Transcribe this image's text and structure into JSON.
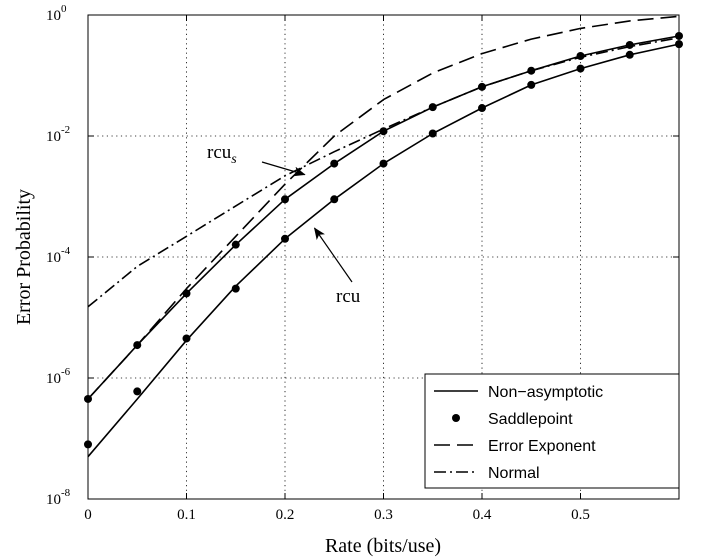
{
  "chart_data": {
    "type": "line",
    "xlabel": "Rate (bits/use)",
    "ylabel": "Error Probability",
    "xlim": [
      0,
      0.6
    ],
    "ylim_log10": [
      -8,
      0
    ],
    "y_scale": "log",
    "grid": true,
    "legend_placement": "bottom-right",
    "x_ticks": [
      0,
      0.1,
      0.2,
      0.3,
      0.4,
      0.5
    ],
    "x_tick_labels": [
      "0",
      "0.1",
      "0.2",
      "0.3",
      "0.4",
      "0.5"
    ],
    "y_ticks": [
      1e-08,
      1e-06,
      0.0001,
      0.01,
      1
    ],
    "y_tick_labels": [
      {
        "base": "10",
        "exp": "-8"
      },
      {
        "base": "10",
        "exp": "-6"
      },
      {
        "base": "10",
        "exp": "-4"
      },
      {
        "base": "10",
        "exp": "-2"
      },
      {
        "base": "10",
        "exp": "0"
      }
    ],
    "series": [
      {
        "name": "Non−asymptotic",
        "style": "solid",
        "curve": "rcu_s",
        "x": [
          0,
          0.05,
          0.1,
          0.15,
          0.2,
          0.25,
          0.3,
          0.35,
          0.4,
          0.45,
          0.5,
          0.55,
          0.6
        ],
        "y": [
          4.5e-07,
          3.5e-06,
          2.5e-05,
          0.00016,
          0.0009,
          0.0035,
          0.012,
          0.03,
          0.065,
          0.12,
          0.21,
          0.32,
          0.45
        ]
      },
      {
        "name": "Non−asymptotic",
        "style": "solid",
        "curve": "rcu",
        "x": [
          0,
          0.05,
          0.1,
          0.15,
          0.2,
          0.25,
          0.3,
          0.35,
          0.4,
          0.45,
          0.5,
          0.55,
          0.6
        ],
        "y": [
          5e-08,
          4.5e-07,
          4.2e-06,
          3.3e-05,
          0.0002,
          0.0009,
          0.0035,
          0.011,
          0.029,
          0.07,
          0.13,
          0.22,
          0.33
        ]
      },
      {
        "name": "Saddlepoint",
        "style": "marker",
        "curve": "rcu_s",
        "x": [
          0,
          0.05,
          0.1,
          0.15,
          0.2,
          0.25,
          0.3,
          0.35,
          0.4,
          0.45,
          0.5,
          0.55,
          0.6
        ],
        "y": [
          4.5e-07,
          3.5e-06,
          2.5e-05,
          0.00016,
          0.0009,
          0.0035,
          0.012,
          0.03,
          0.065,
          0.12,
          0.21,
          0.32,
          0.45
        ]
      },
      {
        "name": "Saddlepoint",
        "style": "marker",
        "curve": "rcu",
        "x": [
          0,
          0.05,
          0.1,
          0.15,
          0.2,
          0.25,
          0.3,
          0.35,
          0.4,
          0.45,
          0.5,
          0.55,
          0.6
        ],
        "y": [
          8e-08,
          6e-07,
          4.5e-06,
          3e-05,
          0.0002,
          0.0009,
          0.0035,
          0.011,
          0.029,
          0.07,
          0.13,
          0.22,
          0.33
        ]
      },
      {
        "name": "Error Exponent",
        "style": "dashed",
        "x": [
          0,
          0.05,
          0.1,
          0.15,
          0.2,
          0.25,
          0.3,
          0.35,
          0.4,
          0.45,
          0.5,
          0.55,
          0.6
        ],
        "y": [
          4.5e-07,
          3.5e-06,
          3e-05,
          0.00022,
          0.0016,
          0.01,
          0.04,
          0.11,
          0.23,
          0.4,
          0.6,
          0.8,
          0.95
        ]
      },
      {
        "name": "Normal",
        "style": "dashdot",
        "x": [
          0,
          0.05,
          0.1,
          0.15,
          0.2,
          0.25,
          0.3,
          0.35,
          0.4,
          0.45,
          0.5,
          0.55,
          0.6
        ],
        "y": [
          1.5e-05,
          7e-05,
          0.00022,
          0.0007,
          0.0022,
          0.0055,
          0.013,
          0.03,
          0.065,
          0.12,
          0.2,
          0.3,
          0.42
        ]
      }
    ],
    "legend": [
      {
        "label": "Non−asymptotic",
        "style": "solid"
      },
      {
        "label": "Saddlepoint",
        "style": "marker"
      },
      {
        "label": "Error Exponent",
        "style": "dashed"
      },
      {
        "label": "Normal",
        "style": "dashdot"
      }
    ],
    "annotations": [
      {
        "base": "rcu",
        "sub": "s",
        "points_to": {
          "x": 0.22,
          "y": 0.0023
        }
      },
      {
        "base": "rcu",
        "sub": "",
        "points_to": {
          "x": 0.23,
          "y": 0.0003
        }
      }
    ]
  }
}
